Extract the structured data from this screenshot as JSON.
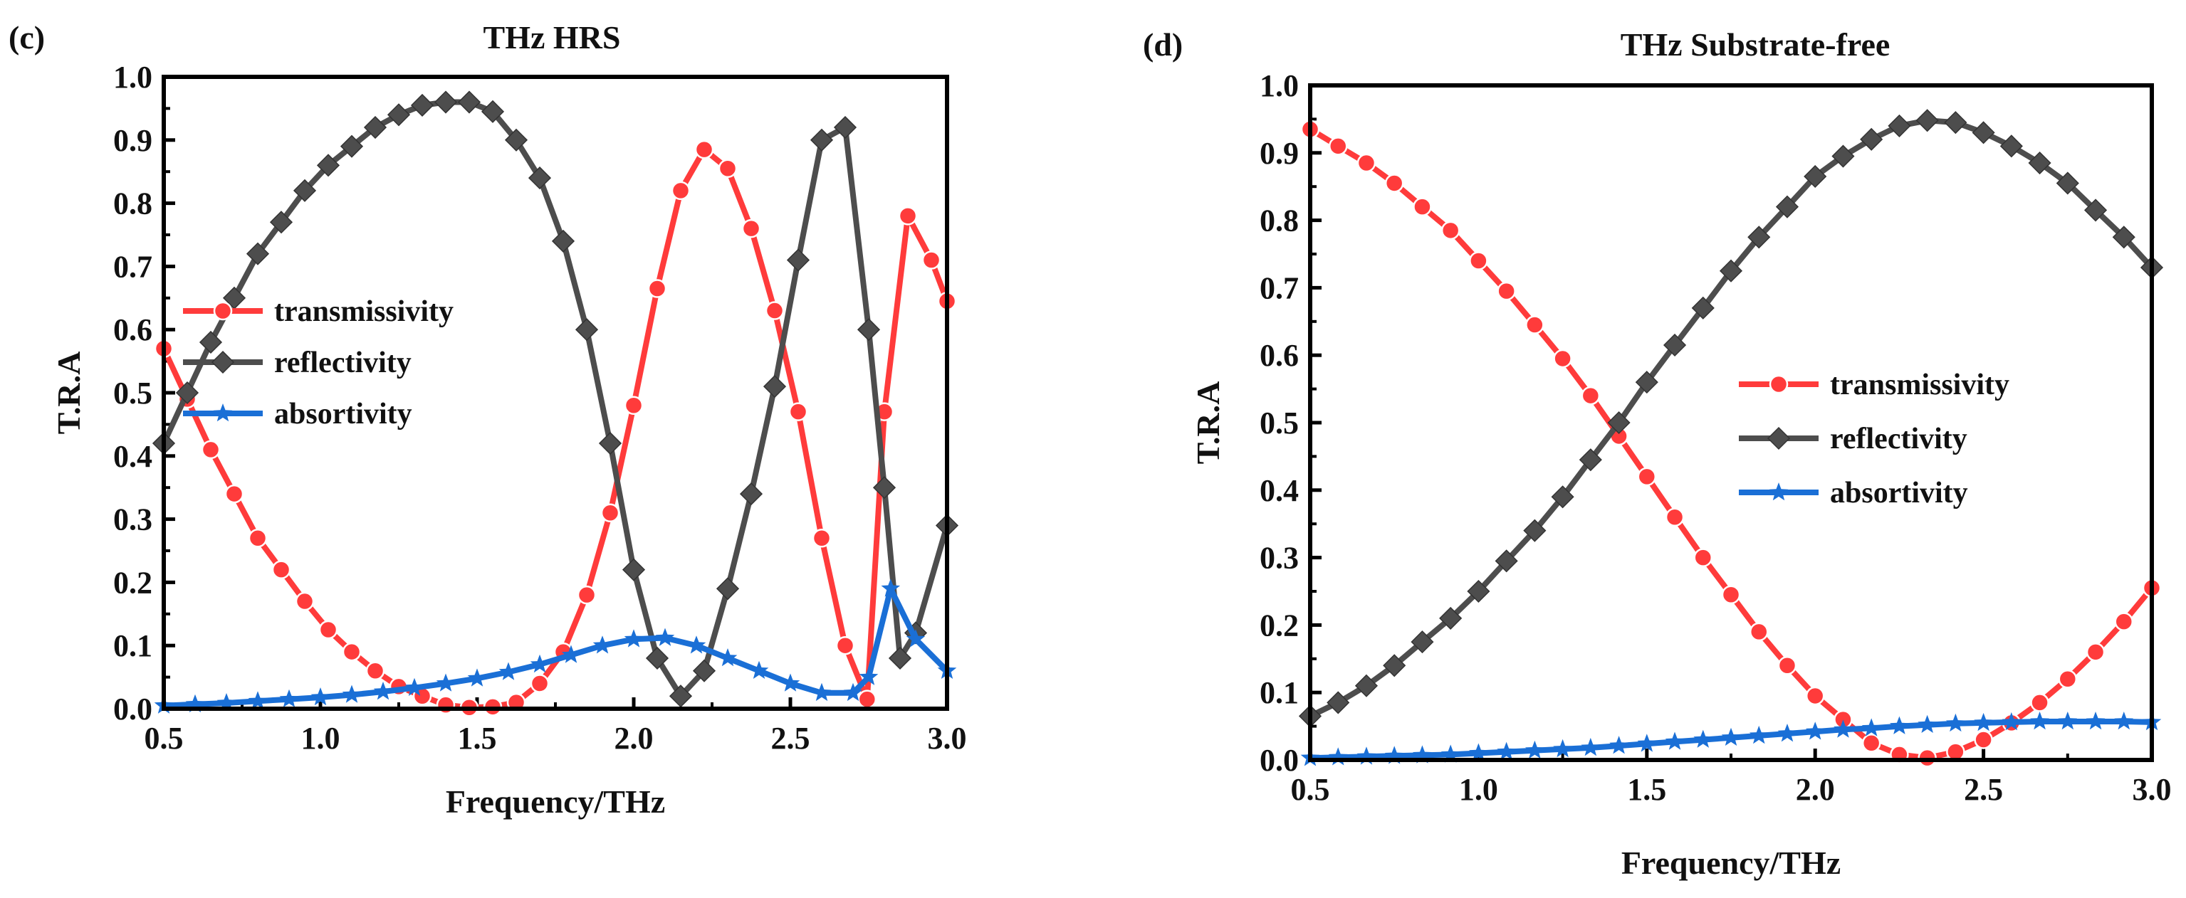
{
  "figure": {
    "colors": {
      "transmissivity": "#ff3b3b",
      "reflectivity": "#4d4d4d",
      "absorptivity": "#1a6fd6"
    }
  },
  "chart_data": [
    {
      "type": "line",
      "panel": "(c)",
      "title": "THz HRS",
      "xlabel": "Frequency/THz",
      "ylabel": "T.R.A",
      "xlim": [
        0.5,
        3.0
      ],
      "ylim": [
        0.0,
        1.0
      ],
      "xticks": [
        "0.5",
        "1.0",
        "1.5",
        "2.0",
        "2.5",
        "3.0"
      ],
      "yticks": [
        "0.0",
        "0.1",
        "0.2",
        "0.3",
        "0.4",
        "0.5",
        "0.6",
        "0.7",
        "0.8",
        "0.9",
        "1.0"
      ],
      "legend_position": "center-left",
      "series": [
        {
          "name": "transmissivity",
          "marker": "circle",
          "color": "#ff3b3b",
          "x": [
            0.5,
            0.575,
            0.65,
            0.725,
            0.8,
            0.875,
            0.95,
            1.025,
            1.1,
            1.175,
            1.25,
            1.325,
            1.4,
            1.475,
            1.55,
            1.625,
            1.7,
            1.775,
            1.85,
            1.925,
            2.0,
            2.075,
            2.15,
            2.225,
            2.3,
            2.375,
            2.45,
            2.525,
            2.6,
            2.675,
            2.745,
            2.8,
            2.875,
            2.95,
            3.0
          ],
          "y": [
            0.57,
            0.49,
            0.41,
            0.34,
            0.27,
            0.22,
            0.17,
            0.125,
            0.09,
            0.06,
            0.035,
            0.02,
            0.006,
            0.002,
            0.003,
            0.01,
            0.04,
            0.09,
            0.18,
            0.31,
            0.48,
            0.665,
            0.82,
            0.885,
            0.855,
            0.76,
            0.63,
            0.47,
            0.27,
            0.1,
            0.015,
            0.47,
            0.78,
            0.71,
            0.645
          ]
        },
        {
          "name": "reflectivity",
          "marker": "diamond",
          "color": "#4d4d4d",
          "x": [
            0.5,
            0.575,
            0.65,
            0.725,
            0.8,
            0.875,
            0.95,
            1.025,
            1.1,
            1.175,
            1.25,
            1.325,
            1.4,
            1.475,
            1.55,
            1.625,
            1.7,
            1.775,
            1.85,
            1.925,
            2.0,
            2.075,
            2.15,
            2.225,
            2.3,
            2.375,
            2.45,
            2.525,
            2.6,
            2.675,
            2.75,
            2.8,
            2.85,
            2.9,
            3.0
          ],
          "y": [
            0.42,
            0.5,
            0.58,
            0.65,
            0.72,
            0.77,
            0.82,
            0.86,
            0.89,
            0.92,
            0.94,
            0.955,
            0.96,
            0.96,
            0.945,
            0.9,
            0.84,
            0.74,
            0.6,
            0.42,
            0.22,
            0.08,
            0.02,
            0.06,
            0.19,
            0.34,
            0.51,
            0.71,
            0.9,
            0.92,
            0.6,
            0.35,
            0.08,
            0.12,
            0.29
          ]
        },
        {
          "name": "absortivity",
          "marker": "star",
          "color": "#1a6fd6",
          "x": [
            0.5,
            0.6,
            0.7,
            0.8,
            0.9,
            1.0,
            1.1,
            1.2,
            1.3,
            1.4,
            1.5,
            1.6,
            1.7,
            1.8,
            1.9,
            2.0,
            2.1,
            2.2,
            2.3,
            2.4,
            2.5,
            2.6,
            2.7,
            2.75,
            2.82,
            2.9,
            3.0
          ],
          "y": [
            0.005,
            0.007,
            0.009,
            0.012,
            0.015,
            0.018,
            0.022,
            0.027,
            0.033,
            0.04,
            0.048,
            0.058,
            0.07,
            0.085,
            0.1,
            0.11,
            0.112,
            0.1,
            0.08,
            0.06,
            0.04,
            0.025,
            0.025,
            0.05,
            0.19,
            0.11,
            0.06
          ]
        }
      ]
    },
    {
      "type": "line",
      "panel": "(d)",
      "title": "THz  Substrate-free",
      "xlabel": "Frequency/THz",
      "ylabel": "T.R.A",
      "xlim": [
        0.5,
        3.0
      ],
      "ylim": [
        0.0,
        1.0
      ],
      "xticks": [
        "0.5",
        "1.0",
        "1.5",
        "2.0",
        "2.5",
        "3.0"
      ],
      "yticks": [
        "0.0",
        "0.1",
        "0.2",
        "0.3",
        "0.4",
        "0.5",
        "0.6",
        "0.7",
        "0.8",
        "0.9",
        "1.0"
      ],
      "legend_position": "center-right",
      "series": [
        {
          "name": "transmissivity",
          "marker": "circle",
          "color": "#ff3b3b",
          "x": [
            0.5,
            0.583,
            0.667,
            0.75,
            0.833,
            0.917,
            1.0,
            1.083,
            1.167,
            1.25,
            1.333,
            1.417,
            1.5,
            1.583,
            1.667,
            1.75,
            1.833,
            1.917,
            2.0,
            2.083,
            2.167,
            2.25,
            2.333,
            2.417,
            2.5,
            2.583,
            2.667,
            2.75,
            2.833,
            2.917,
            3.0
          ],
          "y": [
            0.935,
            0.91,
            0.885,
            0.855,
            0.82,
            0.785,
            0.74,
            0.695,
            0.645,
            0.595,
            0.54,
            0.48,
            0.42,
            0.36,
            0.3,
            0.245,
            0.19,
            0.14,
            0.095,
            0.06,
            0.025,
            0.008,
            0.003,
            0.012,
            0.03,
            0.055,
            0.085,
            0.12,
            0.16,
            0.205,
            0.255
          ]
        },
        {
          "name": "reflectivity",
          "marker": "diamond",
          "color": "#4d4d4d",
          "x": [
            0.5,
            0.583,
            0.667,
            0.75,
            0.833,
            0.917,
            1.0,
            1.083,
            1.167,
            1.25,
            1.333,
            1.417,
            1.5,
            1.583,
            1.667,
            1.75,
            1.833,
            1.917,
            2.0,
            2.083,
            2.167,
            2.25,
            2.333,
            2.417,
            2.5,
            2.583,
            2.667,
            2.75,
            2.833,
            2.917,
            3.0
          ],
          "y": [
            0.065,
            0.085,
            0.11,
            0.14,
            0.175,
            0.21,
            0.25,
            0.295,
            0.34,
            0.39,
            0.445,
            0.5,
            0.56,
            0.615,
            0.67,
            0.725,
            0.775,
            0.82,
            0.865,
            0.895,
            0.92,
            0.94,
            0.948,
            0.945,
            0.93,
            0.91,
            0.885,
            0.855,
            0.815,
            0.775,
            0.73
          ]
        },
        {
          "name": "absortivity",
          "marker": "star",
          "color": "#1a6fd6",
          "x": [
            0.5,
            0.583,
            0.667,
            0.75,
            0.833,
            0.917,
            1.0,
            1.083,
            1.167,
            1.25,
            1.333,
            1.417,
            1.5,
            1.583,
            1.667,
            1.75,
            1.833,
            1.917,
            2.0,
            2.083,
            2.167,
            2.25,
            2.333,
            2.417,
            2.5,
            2.583,
            2.667,
            2.75,
            2.833,
            2.917,
            3.0
          ],
          "y": [
            0.003,
            0.004,
            0.005,
            0.006,
            0.007,
            0.008,
            0.01,
            0.012,
            0.014,
            0.016,
            0.018,
            0.021,
            0.024,
            0.027,
            0.03,
            0.033,
            0.036,
            0.039,
            0.042,
            0.045,
            0.047,
            0.05,
            0.052,
            0.054,
            0.055,
            0.056,
            0.057,
            0.057,
            0.057,
            0.057,
            0.056
          ]
        }
      ]
    }
  ]
}
